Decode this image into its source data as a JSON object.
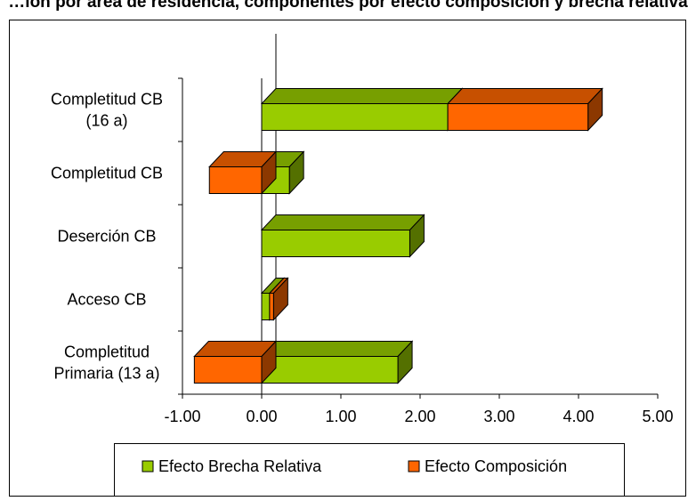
{
  "chart_data": {
    "type": "bar",
    "title": "…ión por área de residencia, componentes por efecto composición y brecha relativa",
    "orientation": "horizontal",
    "stacked": true,
    "style": "3d",
    "xlim": [
      -1.0,
      5.0
    ],
    "x_ticks": [
      "-1.00",
      "0.00",
      "1.00",
      "2.00",
      "3.00",
      "4.00",
      "5.00"
    ],
    "x_tick_values": [
      -1,
      0,
      1,
      2,
      3,
      4,
      5
    ],
    "categories": [
      "Completitud CB (16 a)",
      "Completitud CB",
      "Deserción CB",
      "Acceso CB",
      "Completitud Primaria (13 a)"
    ],
    "category_lines": [
      [
        "Completitud CB",
        "(16 a)"
      ],
      [
        "Completitud CB"
      ],
      [
        "Deserción CB"
      ],
      [
        "Acceso CB"
      ],
      [
        "Completitud",
        "Primaria (13 a)"
      ]
    ],
    "series": [
      {
        "name": "Efecto Brecha Relativa",
        "color": "#99CC00",
        "values": [
          2.35,
          0.35,
          1.87,
          0.1,
          1.72
        ]
      },
      {
        "name": "Efecto Composición",
        "color": "#FF6600",
        "values": [
          1.77,
          -0.66,
          0.0,
          0.05,
          -0.85
        ]
      }
    ],
    "legend": {
      "position": "bottom",
      "entries": [
        "Efecto Brecha Relativa",
        "Efecto Composición"
      ]
    },
    "grid": false
  }
}
